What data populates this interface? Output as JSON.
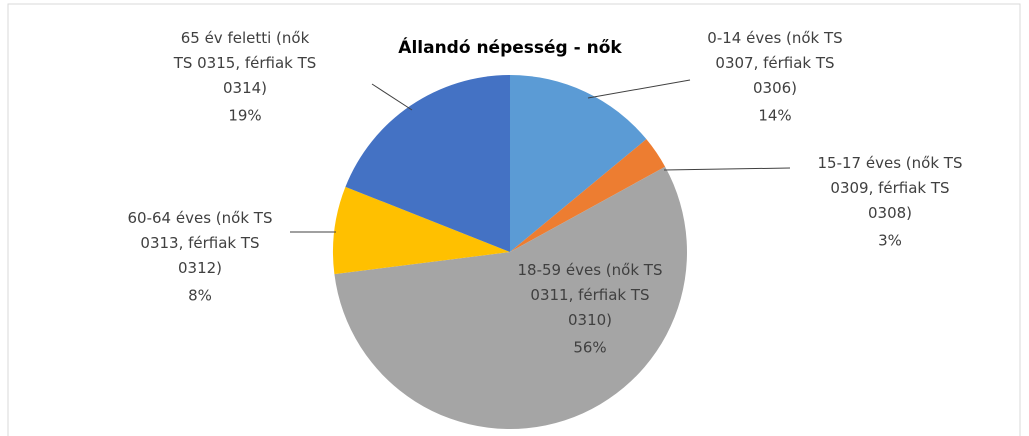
{
  "chart_data": {
    "type": "pie",
    "title": "Állandó népesség - nők",
    "categories": [
      "0-14 éves (nők TS 0307, férfiak TS 0306)",
      "15-17 éves (nők TS 0309, férfiak TS 0308)",
      "18-59 éves (nők TS 0311, férfiak TS 0310)",
      "60-64 éves (nők TS 0313, férfiak TS 0312)",
      "65 év feletti (nők TS 0315, férfiak TS 0314)"
    ],
    "values": [
      14,
      3,
      56,
      8,
      19
    ],
    "value_labels": [
      "14%",
      "3%",
      "56%",
      "8%",
      "19%"
    ],
    "colors": [
      "#5b9bd5",
      "#ed7d31",
      "#a5a5a5",
      "#ffc000",
      "#4472c4"
    ]
  }
}
